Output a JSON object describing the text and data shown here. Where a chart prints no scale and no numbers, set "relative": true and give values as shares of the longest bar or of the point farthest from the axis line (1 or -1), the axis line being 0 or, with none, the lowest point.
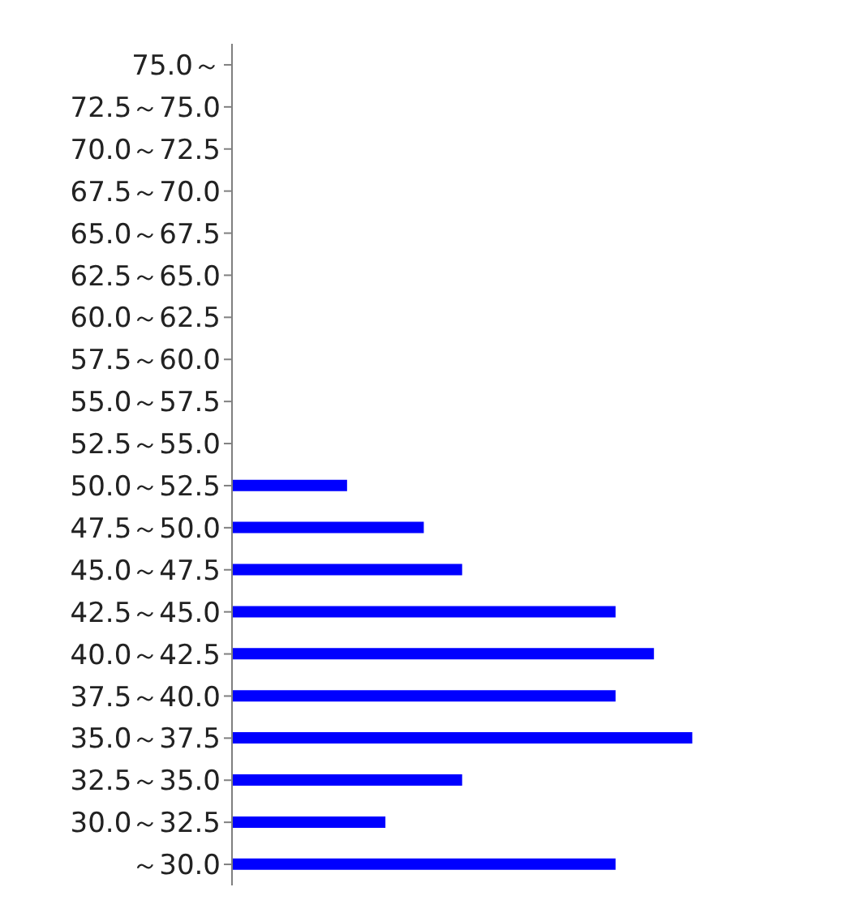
{
  "chart_data": {
    "type": "bar",
    "orientation": "horizontal",
    "relative": true,
    "color": "#0000ff",
    "categories": [
      "75.0～",
      "72.5～75.0",
      "70.0～72.5",
      "67.5～70.0",
      "65.0～67.5",
      "62.5～65.0",
      "60.0～62.5",
      "57.5～60.0",
      "55.0～57.5",
      "52.5～55.0",
      "50.0～52.5",
      "47.5～50.0",
      "45.0～47.5",
      "42.5～45.0",
      "40.0～42.5",
      "37.5～40.0",
      "35.0～37.5",
      "32.5～35.0",
      "30.0～32.5",
      "～30.0"
    ],
    "values": [
      0,
      0,
      0,
      0,
      0,
      0,
      0,
      0,
      0,
      0,
      0.25,
      0.4167,
      0.5,
      0.8333,
      0.9167,
      0.8333,
      1,
      0.5,
      0.3333,
      0.8333
    ],
    "grid": false,
    "legend": false
  }
}
